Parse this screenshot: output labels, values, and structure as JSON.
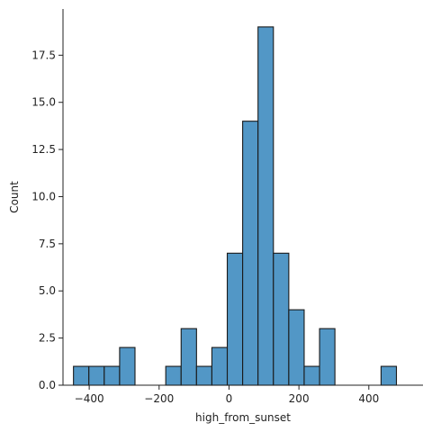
{
  "chart_data": {
    "type": "bar",
    "title": "",
    "xlabel": "high_from_sunset",
    "ylabel": "Count",
    "bar_color": "#5297c6",
    "edge_color": "#1a1a1a",
    "xlim": [
      -475,
      555
    ],
    "ylim": [
      0,
      19.95
    ],
    "xticks": [
      -400,
      -200,
      0,
      200,
      400
    ],
    "yticks": [
      0.0,
      2.5,
      5.0,
      7.5,
      10.0,
      12.5,
      15.0,
      17.5
    ],
    "ytick_labels": [
      "0.0",
      "2.5",
      "5.0",
      "7.5",
      "10.0",
      "12.5",
      "15.0",
      "17.5"
    ],
    "grid": false,
    "bins": [
      {
        "x0": -445,
        "x1": -401,
        "count": 1
      },
      {
        "x0": -401,
        "x1": -357,
        "count": 1
      },
      {
        "x0": -357,
        "x1": -313,
        "count": 1
      },
      {
        "x0": -313,
        "x1": -269,
        "count": 2
      },
      {
        "x0": -269,
        "x1": -225,
        "count": 0
      },
      {
        "x0": -225,
        "x1": -181,
        "count": 0
      },
      {
        "x0": -181,
        "x1": -137,
        "count": 1
      },
      {
        "x0": -137,
        "x1": -93,
        "count": 3
      },
      {
        "x0": -93,
        "x1": -49,
        "count": 1
      },
      {
        "x0": -49,
        "x1": -5,
        "count": 2
      },
      {
        "x0": -5,
        "x1": 39,
        "count": 7
      },
      {
        "x0": 39,
        "x1": 83,
        "count": 14
      },
      {
        "x0": 83,
        "x1": 127,
        "count": 19
      },
      {
        "x0": 127,
        "x1": 171,
        "count": 7
      },
      {
        "x0": 171,
        "x1": 215,
        "count": 4
      },
      {
        "x0": 215,
        "x1": 259,
        "count": 1
      },
      {
        "x0": 259,
        "x1": 303,
        "count": 3
      },
      {
        "x0": 303,
        "x1": 347,
        "count": 0
      },
      {
        "x0": 347,
        "x1": 391,
        "count": 0
      },
      {
        "x0": 391,
        "x1": 435,
        "count": 0
      },
      {
        "x0": 435,
        "x1": 479,
        "count": 1
      }
    ]
  }
}
